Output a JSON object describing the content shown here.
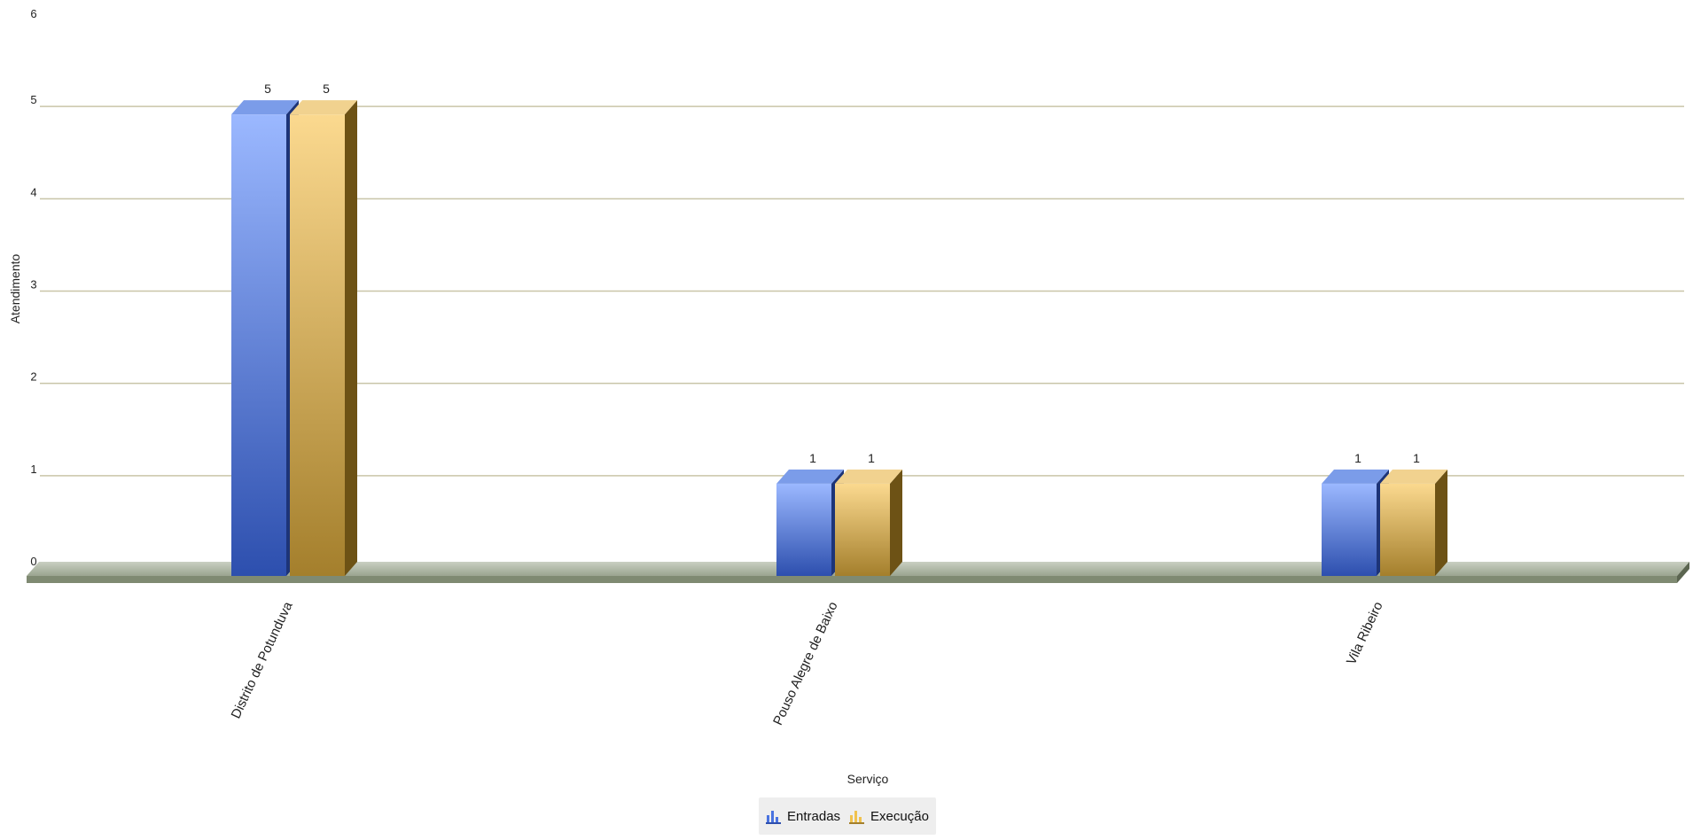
{
  "chart_data": {
    "type": "bar",
    "title": "",
    "xlabel": "Serviço",
    "ylabel": "Atendimento",
    "categories": [
      "Distrito de Potunduva",
      "Pouso Alegre de Baixo",
      "Vila Ribeiro"
    ],
    "series": [
      {
        "name": "Entradas",
        "values": [
          5,
          1,
          1
        ],
        "color": "#5b7fe0"
      },
      {
        "name": "Execução",
        "values": [
          5,
          1,
          1
        ],
        "color": "#e8bf63"
      }
    ],
    "ylim": [
      0,
      6
    ],
    "yticks": [
      "0",
      "1",
      "2",
      "3",
      "4",
      "5",
      "6"
    ],
    "grid": true,
    "legend": "bottom-center",
    "style": "3d"
  },
  "legend": {
    "entries": [
      "Entradas",
      "Execução"
    ],
    "icons": [
      "bar-chart-icon-blue",
      "bar-chart-icon-gold"
    ]
  }
}
